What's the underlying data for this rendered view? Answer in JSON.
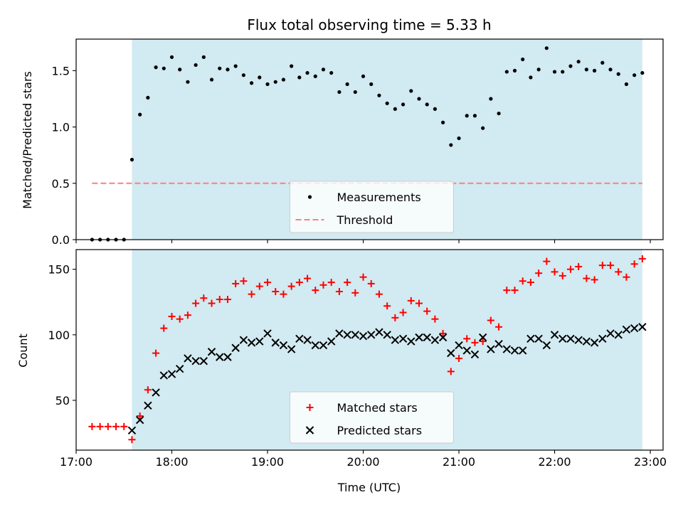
{
  "chart_data": [
    {
      "type": "scatter",
      "title": "Flux total observing time = 5.33 h",
      "ylabel": "Matched/Predicted stars",
      "xlabel": "",
      "xlim": [
        "17:00",
        "23:08"
      ],
      "ylim": [
        0.0,
        1.78
      ],
      "yticks": [
        "0.0",
        "0.5",
        "1.0",
        "1.5"
      ],
      "xticks": [
        "17:00",
        "18:00",
        "19:00",
        "20:00",
        "21:00",
        "22:00",
        "23:00"
      ],
      "shaded_interval": [
        "17:35",
        "22:55"
      ],
      "shade_color": "#add8e6",
      "legend_placement": "lower center",
      "series": [
        {
          "name": "Measurements",
          "marker": "dot",
          "color": "#000000",
          "x": [
            "17:10",
            "17:15",
            "17:20",
            "17:25",
            "17:30",
            "17:35",
            "17:40",
            "17:45",
            "17:50",
            "17:55",
            "18:00",
            "18:05",
            "18:10",
            "18:15",
            "18:20",
            "18:25",
            "18:30",
            "18:35",
            "18:40",
            "18:45",
            "18:50",
            "18:55",
            "19:00",
            "19:05",
            "19:10",
            "19:15",
            "19:20",
            "19:25",
            "19:30",
            "19:35",
            "19:40",
            "19:45",
            "19:50",
            "19:55",
            "20:00",
            "20:05",
            "20:10",
            "20:15",
            "20:20",
            "20:25",
            "20:30",
            "20:35",
            "20:40",
            "20:45",
            "20:50",
            "20:55",
            "21:00",
            "21:05",
            "21:10",
            "21:15",
            "21:20",
            "21:25",
            "21:30",
            "21:35",
            "21:40",
            "21:45",
            "21:50",
            "21:55",
            "22:00",
            "22:05",
            "22:10",
            "22:15",
            "22:20",
            "22:25",
            "22:30",
            "22:35",
            "22:40",
            "22:45",
            "22:50",
            "22:55"
          ],
          "y": [
            0.0,
            0.0,
            0.0,
            0.0,
            0.0,
            0.71,
            1.11,
            1.26,
            1.53,
            1.52,
            1.62,
            1.51,
            1.4,
            1.55,
            1.62,
            1.42,
            1.52,
            1.51,
            1.54,
            1.46,
            1.39,
            1.44,
            1.38,
            1.4,
            1.42,
            1.54,
            1.44,
            1.48,
            1.45,
            1.51,
            1.48,
            1.31,
            1.38,
            1.31,
            1.45,
            1.38,
            1.28,
            1.21,
            1.16,
            1.2,
            1.32,
            1.25,
            1.2,
            1.16,
            1.04,
            0.84,
            0.9,
            1.1,
            1.1,
            0.99,
            1.25,
            1.12,
            1.49,
            1.5,
            1.6,
            1.44,
            1.51,
            1.7,
            1.49,
            1.49,
            1.54,
            1.58,
            1.51,
            1.5,
            1.57,
            1.51,
            1.47,
            1.38,
            1.46,
            1.48
          ]
        },
        {
          "name": "Threshold",
          "type": "line",
          "style": "dashed",
          "color": "#ff7f7f",
          "x": [
            "17:10",
            "22:55"
          ],
          "y": [
            0.5,
            0.5
          ]
        }
      ]
    },
    {
      "type": "scatter",
      "title": "",
      "ylabel": "Count",
      "xlabel": "Time (UTC)",
      "xlim": [
        "17:00",
        "23:08"
      ],
      "ylim": [
        12,
        165
      ],
      "yticks": [
        "50",
        "100",
        "150"
      ],
      "xticks": [
        "17:00",
        "18:00",
        "19:00",
        "20:00",
        "21:00",
        "22:00",
        "23:00"
      ],
      "shaded_interval": [
        "17:35",
        "22:55"
      ],
      "shade_color": "#add8e6",
      "legend_placement": "lower center",
      "series": [
        {
          "name": "Matched stars",
          "marker": "plus",
          "color": "#ff0000",
          "x": [
            "17:10",
            "17:15",
            "17:20",
            "17:25",
            "17:30",
            "17:35",
            "17:40",
            "17:45",
            "17:50",
            "17:55",
            "18:00",
            "18:05",
            "18:10",
            "18:15",
            "18:20",
            "18:25",
            "18:30",
            "18:35",
            "18:40",
            "18:45",
            "18:50",
            "18:55",
            "19:00",
            "19:05",
            "19:10",
            "19:15",
            "19:20",
            "19:25",
            "19:30",
            "19:35",
            "19:40",
            "19:45",
            "19:50",
            "19:55",
            "20:00",
            "20:05",
            "20:10",
            "20:15",
            "20:20",
            "20:25",
            "20:30",
            "20:35",
            "20:40",
            "20:45",
            "20:50",
            "20:55",
            "21:00",
            "21:05",
            "21:10",
            "21:15",
            "21:20",
            "21:25",
            "21:30",
            "21:35",
            "21:40",
            "21:45",
            "21:50",
            "21:55",
            "22:00",
            "22:05",
            "22:10",
            "22:15",
            "22:20",
            "22:25",
            "22:30",
            "22:35",
            "22:40",
            "22:45",
            "22:50",
            "22:55"
          ],
          "y": [
            30,
            30,
            30,
            30,
            30,
            20,
            38,
            58,
            86,
            105,
            114,
            112,
            115,
            124,
            128,
            124,
            127,
            127,
            139,
            141,
            131,
            137,
            140,
            133,
            131,
            137,
            140,
            143,
            134,
            138,
            140,
            133,
            140,
            132,
            144,
            139,
            131,
            122,
            113,
            117,
            126,
            124,
            118,
            112,
            101,
            72,
            82,
            97,
            94,
            95,
            111,
            106,
            134,
            134,
            141,
            140,
            147,
            156,
            148,
            145,
            150,
            152,
            143,
            142,
            153,
            153,
            148,
            144,
            154,
            158
          ]
        },
        {
          "name": "Predicted stars",
          "marker": "x",
          "color": "#000000",
          "x": [
            "17:35",
            "17:40",
            "17:45",
            "17:50",
            "17:55",
            "18:00",
            "18:05",
            "18:10",
            "18:15",
            "18:20",
            "18:25",
            "18:30",
            "18:35",
            "18:40",
            "18:45",
            "18:50",
            "18:55",
            "19:00",
            "19:05",
            "19:10",
            "19:15",
            "19:20",
            "19:25",
            "19:30",
            "19:35",
            "19:40",
            "19:45",
            "19:50",
            "19:55",
            "20:00",
            "20:05",
            "20:10",
            "20:15",
            "20:20",
            "20:25",
            "20:30",
            "20:35",
            "20:40",
            "20:45",
            "20:50",
            "20:55",
            "21:00",
            "21:05",
            "21:10",
            "21:15",
            "21:20",
            "21:25",
            "21:30",
            "21:35",
            "21:40",
            "21:45",
            "21:50",
            "21:55",
            "22:00",
            "22:05",
            "22:10",
            "22:15",
            "22:20",
            "22:25",
            "22:30",
            "22:35",
            "22:40",
            "22:45",
            "22:50",
            "22:55"
          ],
          "y": [
            27,
            35,
            46,
            56,
            69,
            70,
            74,
            82,
            80,
            80,
            87,
            83,
            83,
            90,
            96,
            94,
            95,
            101,
            94,
            92,
            89,
            97,
            96,
            92,
            92,
            95,
            101,
            100,
            100,
            99,
            100,
            102,
            100,
            96,
            97,
            95,
            98,
            98,
            96,
            98,
            86,
            92,
            88,
            85,
            98,
            89,
            93,
            89,
            88,
            88,
            97,
            97,
            92,
            100,
            97,
            97,
            96,
            95,
            94,
            97,
            101,
            100,
            104,
            105,
            106
          ]
        }
      ]
    }
  ]
}
